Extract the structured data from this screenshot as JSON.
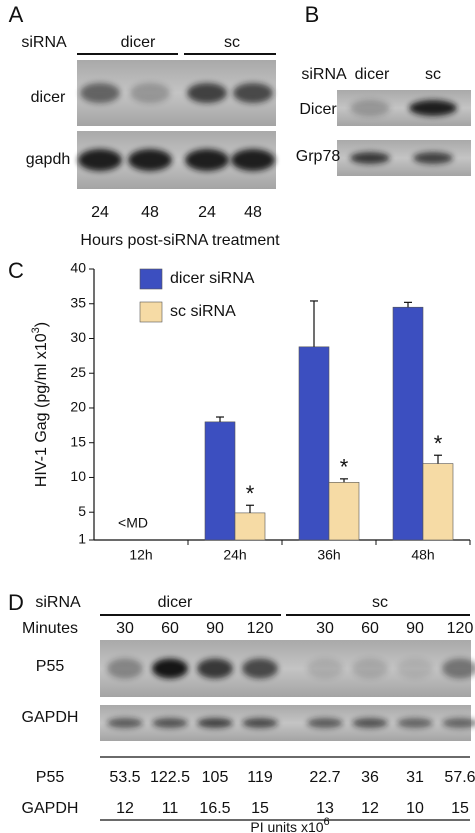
{
  "panel_a": {
    "label": "A",
    "row_label": "siRNA",
    "groups": [
      "dicer",
      "sc"
    ],
    "blots": [
      "dicer",
      "gapdh"
    ],
    "lanes": [
      24,
      48,
      24,
      48
    ],
    "x_label": "Hours post-siRNA treatment"
  },
  "panel_b": {
    "label": "B",
    "row_label": "siRNA",
    "groups": [
      "dicer",
      "sc"
    ],
    "blots": [
      "Dicer",
      "Grp78"
    ]
  },
  "chart_data": {
    "type": "bar",
    "panel_label": "C",
    "categories": [
      "12h",
      "24h",
      "36h",
      "48h"
    ],
    "series": [
      {
        "name": "dicer siRNA",
        "color": "#3c4fc0",
        "values": [
          null,
          18,
          28.8,
          34.5
        ],
        "errors": [
          null,
          0.7,
          6.6,
          0.7
        ]
      },
      {
        "name": "sc siRNA",
        "color": "#f6dba5",
        "values": [
          null,
          4.9,
          9.3,
          12
        ],
        "errors": [
          null,
          1.1,
          0.5,
          1.2
        ]
      }
    ],
    "ylim": [
      1,
      40
    ],
    "yticks": [
      1,
      5,
      10,
      15,
      20,
      25,
      30,
      35,
      40
    ],
    "y_label": {
      "text": "HIV-1 Gag (pg/ml x10",
      "sup": "3",
      "tail": ")"
    },
    "annotations": [
      {
        "text": "<MD",
        "category": 0
      },
      {
        "text": "*",
        "series": 1,
        "category": 1
      },
      {
        "text": "*",
        "series": 1,
        "category": 2
      },
      {
        "text": "*",
        "series": 1,
        "category": 3
      }
    ]
  },
  "panel_d": {
    "label": "D",
    "row_label": "siRNA",
    "groups": [
      "dicer",
      "sc"
    ],
    "lanes_label": "Minutes",
    "lanes": [
      30,
      60,
      90,
      120,
      30,
      60,
      90,
      120
    ],
    "blots": [
      "P55",
      "GAPDH"
    ],
    "table": {
      "rows": [
        {
          "label": "P55",
          "values": [
            53.5,
            122.5,
            105,
            119,
            22.7,
            36,
            31,
            57.6
          ]
        },
        {
          "label": "GAPDH",
          "values": [
            12,
            11,
            16.5,
            15,
            13,
            12,
            10,
            15
          ]
        }
      ]
    },
    "footer": {
      "text": "PI units x10",
      "sup": "6"
    }
  }
}
